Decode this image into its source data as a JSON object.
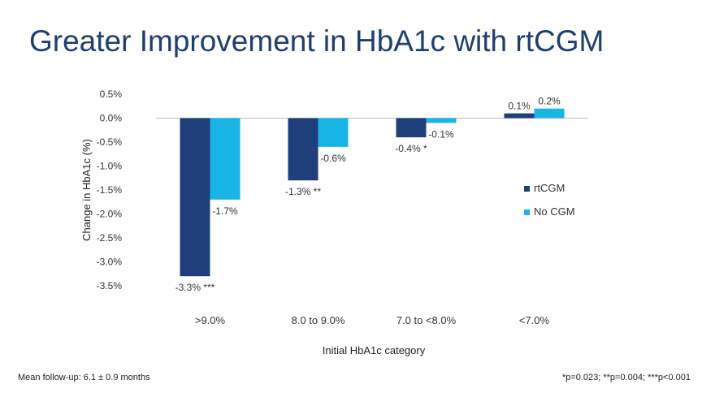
{
  "title": "Greater Improvement in HbA1c with rtCGM",
  "footnote_left": "Mean follow-up: 6.1 ± 0.9 months",
  "footnote_right": "*p=0.023; **p=0.004; ***p<0.001",
  "chart_data": {
    "type": "bar",
    "categories": [
      ">9.0%",
      "8.0 to 9.0%",
      "7.0 to <8.0%",
      "<7.0%"
    ],
    "series": [
      {
        "name": "rtCGM",
        "color": "#1f3f7a",
        "values": [
          -3.3,
          -1.3,
          -0.4,
          0.1
        ],
        "labels": [
          "-3.3% ***",
          "-1.3% **",
          "-0.4% *",
          "0.1%"
        ]
      },
      {
        "name": "No CGM",
        "color": "#19b5e6",
        "values": [
          -1.7,
          -0.6,
          -0.1,
          0.2
        ],
        "labels": [
          "-1.7%",
          "-0.6%",
          "-0.1%",
          "0.2%"
        ]
      }
    ],
    "xlabel": "Initial HbA1c category",
    "ylabel": "Change in HbA1c (%)",
    "ylim": [
      -3.5,
      0.5
    ],
    "yticks": [
      0.5,
      0.0,
      -0.5,
      -1.0,
      -1.5,
      -2.0,
      -2.5,
      -3.0,
      -3.5
    ],
    "ytick_labels": [
      "0.5%",
      "0.0%",
      "-0.5%",
      "-1.0%",
      "-1.5%",
      "-2.0%",
      "-2.5%",
      "-3.0%",
      "-3.5%"
    ],
    "legend_position": "right",
    "grid": false
  }
}
